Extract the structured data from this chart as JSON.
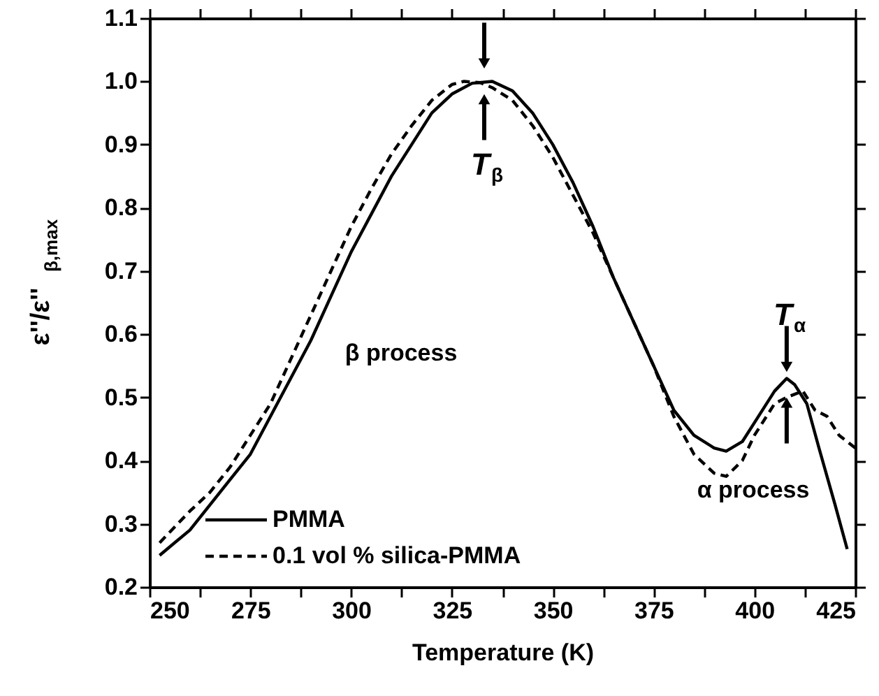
{
  "chart_data": {
    "type": "line",
    "xlabel": "Temperature (K)",
    "ylabel": "ε''/ε''$_{β,max}$",
    "xlim": [
      250,
      425
    ],
    "ylim": [
      0.2,
      1.1
    ],
    "xticks": [
      250,
      {
        "value": 262.5,
        "label": null
      },
      275,
      {
        "value": 287.5,
        "label": null
      },
      300,
      {
        "value": 312.5,
        "label": null
      },
      325,
      {
        "value": 337.5,
        "label": null
      },
      350,
      {
        "value": 362.5,
        "label": null
      },
      375,
      {
        "value": 387.5,
        "label": null
      },
      400,
      {
        "value": 412.5,
        "label": null
      },
      425
    ],
    "yticks": [
      0.2,
      0.3,
      0.4,
      0.5,
      0.6,
      0.7,
      0.8,
      0.9,
      {
        "value": 1.0,
        "label": "1.0"
      },
      1.1
    ],
    "grid": false,
    "legend": "bottom left",
    "series": [
      {
        "name": "PMMA",
        "color": "#000000",
        "line_style": "solid",
        "x": [
          252.5,
          260,
          265,
          270,
          275,
          280,
          285,
          290,
          295,
          300,
          305,
          310,
          315,
          320,
          325,
          330,
          335,
          340,
          345,
          350,
          355,
          360,
          365,
          370,
          375,
          380,
          385,
          390,
          393,
          397,
          400,
          405,
          408,
          410,
          413,
          416,
          420,
          423
        ],
        "values": [
          0.25,
          0.29,
          0.33,
          0.37,
          0.41,
          0.47,
          0.53,
          0.59,
          0.66,
          0.73,
          0.79,
          0.85,
          0.9,
          0.95,
          0.98,
          0.997,
          1.0,
          0.985,
          0.95,
          0.9,
          0.84,
          0.77,
          0.69,
          0.62,
          0.55,
          0.48,
          0.44,
          0.42,
          0.415,
          0.43,
          0.46,
          0.51,
          0.53,
          0.52,
          0.49,
          0.42,
          0.33,
          0.26
        ]
      },
      {
        "name": "0.1 vol % silica-PMMA",
        "color": "#000000",
        "line_style": "dashed",
        "x": [
          252.5,
          260,
          265,
          270,
          275,
          280,
          285,
          290,
          295,
          300,
          305,
          310,
          315,
          320,
          325,
          328,
          332,
          335,
          340,
          345,
          350,
          355,
          360,
          365,
          370,
          375,
          380,
          385,
          390,
          393,
          397,
          400,
          405,
          408,
          412,
          415,
          418,
          421,
          425
        ],
        "values": [
          0.27,
          0.32,
          0.35,
          0.39,
          0.44,
          0.49,
          0.56,
          0.63,
          0.7,
          0.77,
          0.83,
          0.885,
          0.93,
          0.97,
          0.995,
          1.0,
          0.998,
          0.99,
          0.97,
          0.93,
          0.88,
          0.82,
          0.76,
          0.69,
          0.62,
          0.55,
          0.47,
          0.41,
          0.38,
          0.375,
          0.4,
          0.44,
          0.49,
          0.5,
          0.51,
          0.48,
          0.47,
          0.44,
          0.42
        ]
      }
    ],
    "annotations": [
      {
        "text": "T$_{β}$",
        "x": 333,
        "y": 1.0
      },
      {
        "text": "T$_{α}$",
        "x": 408,
        "y": 0.52
      },
      "β process",
      "α process"
    ]
  }
}
